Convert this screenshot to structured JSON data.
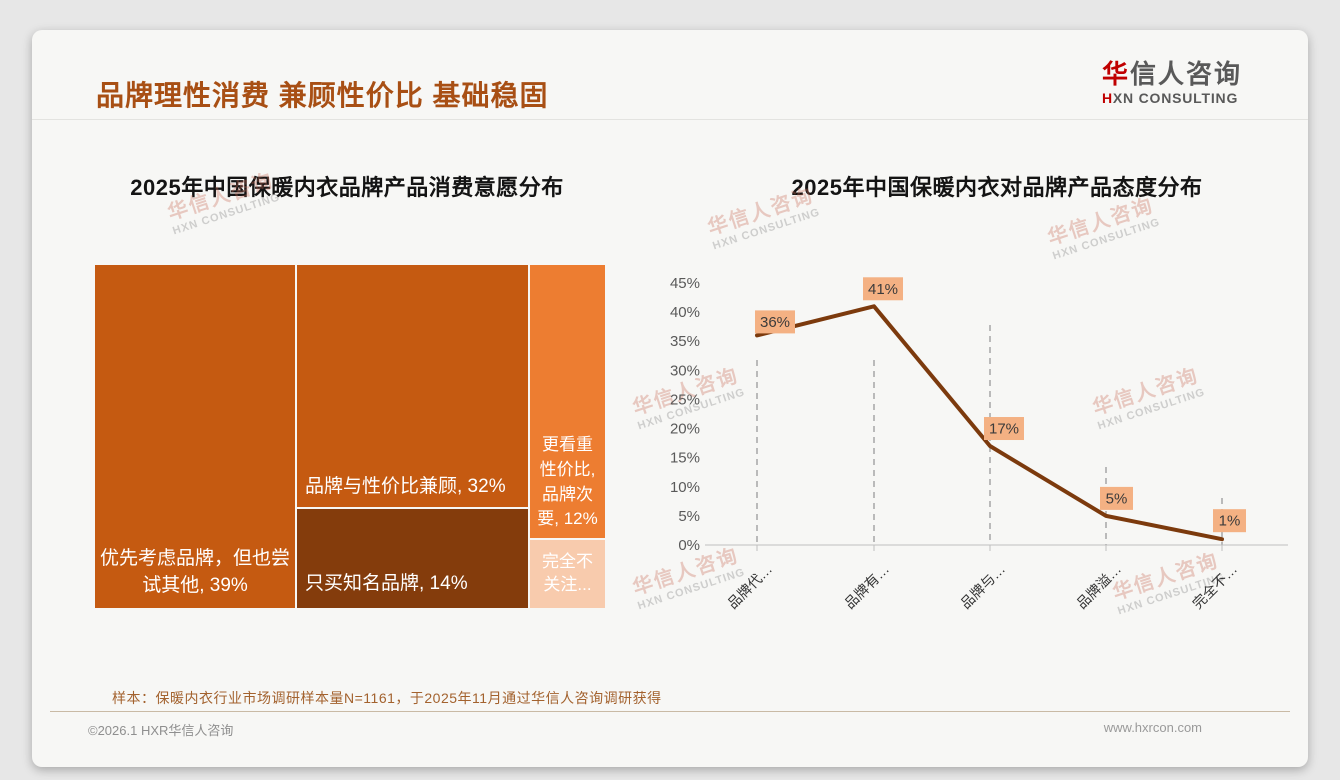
{
  "header": {
    "title": "品牌理性消费 兼顾性价比 基础稳固",
    "logo": {
      "zh_first": "华",
      "zh_rest": "信人咨询",
      "en_first": "H",
      "en_rest": "XN CONSULTING"
    }
  },
  "watermark": {
    "line1": "华信人咨询",
    "line2": "HXN CONSULTING"
  },
  "chart_data": [
    {
      "type": "treemap",
      "title": "2025年中国保暖内衣品牌产品消费意愿分布",
      "categories": [
        "优先考虑品牌，但也尝试其他",
        "品牌与性价比兼顾",
        "只买知名品牌",
        "更看重性价比，品牌次要",
        "完全不关注..."
      ],
      "values": [
        39,
        32,
        14,
        12,
        null
      ],
      "unit": "%",
      "display_labels": [
        "优先考虑品牌，但也尝试其他, 39%",
        "品牌与性价比兼顾, 32%",
        "只买知名品牌, 14%",
        "更看重性价比, 品牌次要, 12%",
        "完全不关注..."
      ],
      "colors": [
        "#C55A11",
        "#C55A11",
        "#843C0C",
        "#ED7D31",
        "#F8CBAD"
      ]
    },
    {
      "type": "line",
      "title": "2025年中国保暖内衣对品牌产品态度分布",
      "categories": [
        "品牌代…",
        "品牌有…",
        "品牌与…",
        "品牌溢…",
        "完全不…"
      ],
      "values": [
        36,
        41,
        17,
        5,
        1
      ],
      "data_labels": [
        "36%",
        "41%",
        "17%",
        "5%",
        "1%"
      ],
      "y_ticks": [
        "0%",
        "5%",
        "10%",
        "15%",
        "20%",
        "25%",
        "30%",
        "35%",
        "40%",
        "45%"
      ],
      "ylim": [
        0,
        45
      ],
      "grid": "vertical-dashed",
      "line_color": "#7C3A0D",
      "label_bg": "#F4B183",
      "label_text_color": "#3b3b3b",
      "axis_color": "#BFBFBF",
      "tick_label_color": "#595959",
      "x_label_color": "#333333",
      "legend": "none"
    }
  ],
  "footnote": "样本：保暖内衣行业市场调研样本量N=1161，于2025年11月通过华信人咨询调研获得",
  "footer": {
    "left": "©2026.1 HXR华信人咨询",
    "right": "www.hxrcon.com"
  }
}
